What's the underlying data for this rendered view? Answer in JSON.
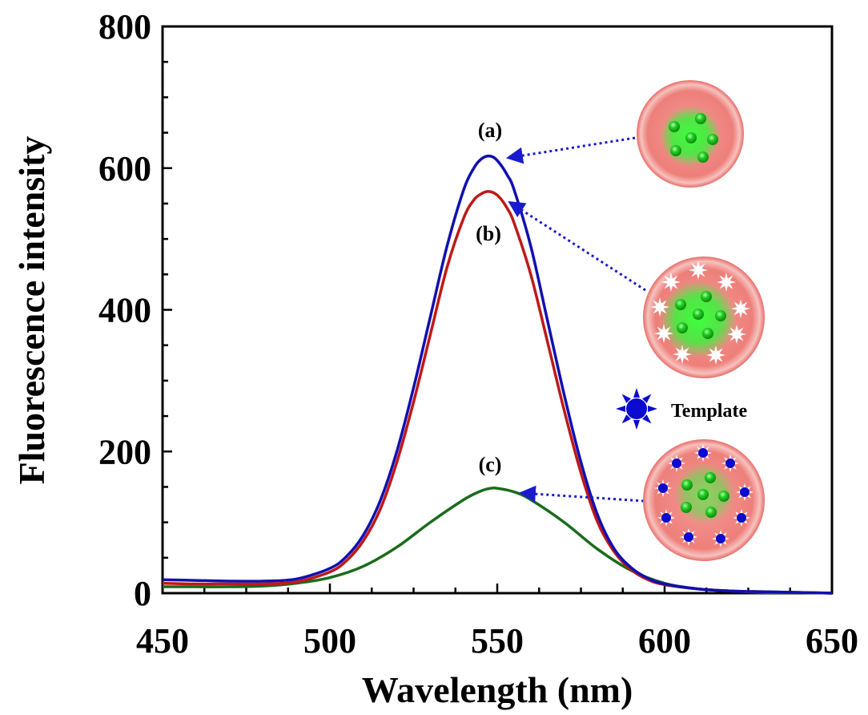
{
  "chart_data": {
    "type": "line",
    "xlabel": "Wavelength (nm)",
    "ylabel": "Fluorescence intensity",
    "xlim": [
      450,
      650
    ],
    "ylim": [
      0,
      800
    ],
    "x_ticks": [
      450,
      500,
      550,
      600,
      650
    ],
    "y_ticks": [
      0,
      200,
      400,
      600,
      800
    ],
    "grid": false,
    "series": [
      {
        "label": "(a)",
        "color": "#1010b0",
        "x": [
          450,
          460,
          470,
          480,
          490,
          500,
          505,
          510,
          515,
          520,
          525,
          530,
          535,
          540,
          543,
          545,
          547,
          549,
          551,
          553,
          555,
          560,
          565,
          570,
          575,
          580,
          585,
          590,
          595,
          600,
          610,
          620,
          630,
          640,
          650
        ],
        "y": [
          19,
          18,
          17,
          17,
          20,
          35,
          52,
          82,
          130,
          200,
          290,
          390,
          490,
          570,
          600,
          612,
          617,
          615,
          605,
          590,
          570,
          490,
          385,
          280,
          185,
          110,
          62,
          36,
          21,
          13,
          6,
          3,
          2,
          1,
          0
        ]
      },
      {
        "label": "(b)",
        "color": "#c01818",
        "x": [
          450,
          460,
          470,
          480,
          490,
          500,
          505,
          510,
          515,
          520,
          525,
          530,
          535,
          540,
          543,
          545,
          547,
          549,
          551,
          553,
          555,
          560,
          565,
          570,
          575,
          580,
          585,
          590,
          595,
          600,
          610,
          620,
          630,
          640,
          650
        ],
        "y": [
          14,
          13,
          13,
          13,
          16,
          30,
          46,
          74,
          118,
          185,
          270,
          365,
          460,
          530,
          555,
          563,
          567,
          565,
          557,
          543,
          523,
          450,
          355,
          258,
          170,
          100,
          58,
          33,
          19,
          12,
          6,
          3,
          2,
          1,
          0
        ]
      },
      {
        "label": "(c)",
        "color": "#1a6b1a",
        "x": [
          450,
          460,
          470,
          480,
          490,
          500,
          510,
          520,
          530,
          540,
          545,
          548,
          550,
          555,
          560,
          570,
          580,
          590,
          600,
          610,
          620,
          630,
          640,
          650
        ],
        "y": [
          9,
          9,
          9,
          10,
          14,
          22,
          38,
          65,
          100,
          132,
          144,
          148,
          148,
          143,
          132,
          100,
          62,
          32,
          14,
          6,
          3,
          1,
          1,
          0
        ]
      }
    ],
    "annotations": [
      "(a)",
      "(b)",
      "(c)"
    ],
    "legend_text": "Template"
  },
  "colors": {
    "particle_pink": "#f08a86",
    "particle_green": "#39d139",
    "template_blue": "#0a0ad0",
    "arrow_blue": "#1a1ad0"
  }
}
